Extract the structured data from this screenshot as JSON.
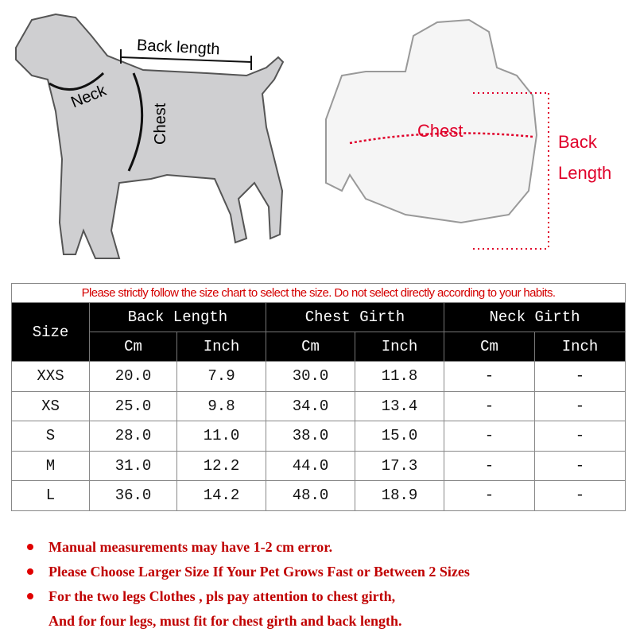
{
  "diagrams": {
    "dog": {
      "back_length": "Back length",
      "neck": "Neck",
      "chest": "Chest"
    },
    "hoodie": {
      "chest": "Chest",
      "back_length_1": "Back",
      "back_length_2": "Length"
    },
    "accent": "#e0002a"
  },
  "table": {
    "notice": "Please strictly follow the size chart to select the size. Do not select directly according to your habits.",
    "size_header": "Size",
    "groups": [
      "Back Length",
      "Chest Girth",
      "Neck Girth"
    ],
    "units": [
      "Cm",
      "Inch",
      "Cm",
      "Inch",
      "Cm",
      "Inch"
    ],
    "rows": [
      [
        "XXS",
        "20.0",
        "7.9",
        "30.0",
        "11.8",
        "-",
        "-"
      ],
      [
        "XS",
        "25.0",
        "9.8",
        "34.0",
        "13.4",
        "-",
        "-"
      ],
      [
        "S",
        "28.0",
        "11.0",
        "38.0",
        "15.0",
        "-",
        "-"
      ],
      [
        "M",
        "31.0",
        "12.2",
        "44.0",
        "17.3",
        "-",
        "-"
      ],
      [
        "L",
        "36.0",
        "14.2",
        "48.0",
        "18.9",
        "-",
        "-"
      ]
    ]
  },
  "notes": [
    "Manual measurements may have 1-2 cm error.",
    "Please Choose Larger Size If Your Pet Grows Fast or Between 2 Sizes",
    "For the two legs Clothes , pls pay attention to chest girth,",
    "And for four legs, must fit for chest girth and back length."
  ]
}
